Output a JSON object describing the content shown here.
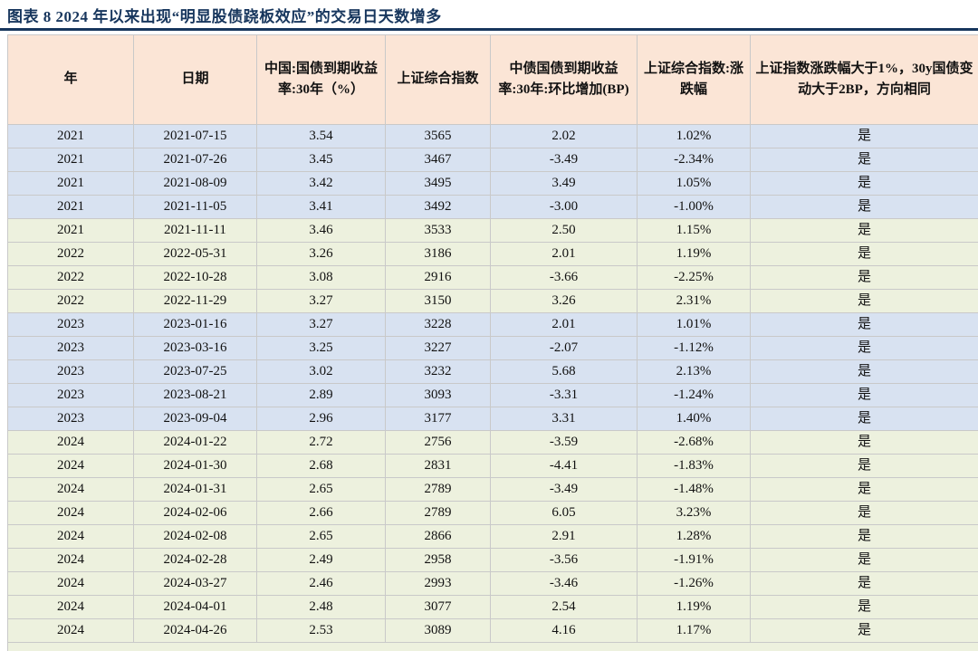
{
  "title": "图表 8  2024 年以来出现“明显股债跷板效应”的交易日天数增多",
  "colors": {
    "title": "#17365d",
    "rule": "#17365d",
    "header_bg": "#fbe5d6",
    "group_blue": "#d8e2f1",
    "group_green": "#edf1de",
    "text": "#111111"
  },
  "table": {
    "columns": [
      {
        "key": "year",
        "label": "年"
      },
      {
        "key": "date",
        "label": "日期"
      },
      {
        "key": "yield_30y",
        "label": "中国:国债到期收益率:30年（%）"
      },
      {
        "key": "sse_index",
        "label": "上证综合指数"
      },
      {
        "key": "yield_chg_bp",
        "label": "中债国债到期收益率:30年:环比增加(BP)"
      },
      {
        "key": "sse_chg_pct",
        "label": "上证综合指数:涨跌幅"
      },
      {
        "key": "flag",
        "label": "上证指数涨跌幅大于1%，30y国债变动大于2BP，方向相同"
      }
    ],
    "rows": [
      {
        "year": "2021",
        "date": "2021-07-15",
        "yield_30y": "3.54",
        "sse_index": "3565",
        "yield_chg_bp": "2.02",
        "sse_chg_pct": "1.02%",
        "flag": "是",
        "group": "blue"
      },
      {
        "year": "2021",
        "date": "2021-07-26",
        "yield_30y": "3.45",
        "sse_index": "3467",
        "yield_chg_bp": "-3.49",
        "sse_chg_pct": "-2.34%",
        "flag": "是",
        "group": "blue"
      },
      {
        "year": "2021",
        "date": "2021-08-09",
        "yield_30y": "3.42",
        "sse_index": "3495",
        "yield_chg_bp": "3.49",
        "sse_chg_pct": "1.05%",
        "flag": "是",
        "group": "blue"
      },
      {
        "year": "2021",
        "date": "2021-11-05",
        "yield_30y": "3.41",
        "sse_index": "3492",
        "yield_chg_bp": "-3.00",
        "sse_chg_pct": "-1.00%",
        "flag": "是",
        "group": "blue"
      },
      {
        "year": "2021",
        "date": "2021-11-11",
        "yield_30y": "3.46",
        "sse_index": "3533",
        "yield_chg_bp": "2.50",
        "sse_chg_pct": "1.15%",
        "flag": "是",
        "group": "green"
      },
      {
        "year": "2022",
        "date": "2022-05-31",
        "yield_30y": "3.26",
        "sse_index": "3186",
        "yield_chg_bp": "2.01",
        "sse_chg_pct": "1.19%",
        "flag": "是",
        "group": "green"
      },
      {
        "year": "2022",
        "date": "2022-10-28",
        "yield_30y": "3.08",
        "sse_index": "2916",
        "yield_chg_bp": "-3.66",
        "sse_chg_pct": "-2.25%",
        "flag": "是",
        "group": "green"
      },
      {
        "year": "2022",
        "date": "2022-11-29",
        "yield_30y": "3.27",
        "sse_index": "3150",
        "yield_chg_bp": "3.26",
        "sse_chg_pct": "2.31%",
        "flag": "是",
        "group": "green"
      },
      {
        "year": "2023",
        "date": "2023-01-16",
        "yield_30y": "3.27",
        "sse_index": "3228",
        "yield_chg_bp": "2.01",
        "sse_chg_pct": "1.01%",
        "flag": "是",
        "group": "blue"
      },
      {
        "year": "2023",
        "date": "2023-03-16",
        "yield_30y": "3.25",
        "sse_index": "3227",
        "yield_chg_bp": "-2.07",
        "sse_chg_pct": "-1.12%",
        "flag": "是",
        "group": "blue"
      },
      {
        "year": "2023",
        "date": "2023-07-25",
        "yield_30y": "3.02",
        "sse_index": "3232",
        "yield_chg_bp": "5.68",
        "sse_chg_pct": "2.13%",
        "flag": "是",
        "group": "blue"
      },
      {
        "year": "2023",
        "date": "2023-08-21",
        "yield_30y": "2.89",
        "sse_index": "3093",
        "yield_chg_bp": "-3.31",
        "sse_chg_pct": "-1.24%",
        "flag": "是",
        "group": "blue"
      },
      {
        "year": "2023",
        "date": "2023-09-04",
        "yield_30y": "2.96",
        "sse_index": "3177",
        "yield_chg_bp": "3.31",
        "sse_chg_pct": "1.40%",
        "flag": "是",
        "group": "blue"
      },
      {
        "year": "2024",
        "date": "2024-01-22",
        "yield_30y": "2.72",
        "sse_index": "2756",
        "yield_chg_bp": "-3.59",
        "sse_chg_pct": "-2.68%",
        "flag": "是",
        "group": "green"
      },
      {
        "year": "2024",
        "date": "2024-01-30",
        "yield_30y": "2.68",
        "sse_index": "2831",
        "yield_chg_bp": "-4.41",
        "sse_chg_pct": "-1.83%",
        "flag": "是",
        "group": "green"
      },
      {
        "year": "2024",
        "date": "2024-01-31",
        "yield_30y": "2.65",
        "sse_index": "2789",
        "yield_chg_bp": "-3.49",
        "sse_chg_pct": "-1.48%",
        "flag": "是",
        "group": "green"
      },
      {
        "year": "2024",
        "date": "2024-02-06",
        "yield_30y": "2.66",
        "sse_index": "2789",
        "yield_chg_bp": "6.05",
        "sse_chg_pct": "3.23%",
        "flag": "是",
        "group": "green"
      },
      {
        "year": "2024",
        "date": "2024-02-08",
        "yield_30y": "2.65",
        "sse_index": "2866",
        "yield_chg_bp": "2.91",
        "sse_chg_pct": "1.28%",
        "flag": "是",
        "group": "green"
      },
      {
        "year": "2024",
        "date": "2024-02-28",
        "yield_30y": "2.49",
        "sse_index": "2958",
        "yield_chg_bp": "-3.56",
        "sse_chg_pct": "-1.91%",
        "flag": "是",
        "group": "green"
      },
      {
        "year": "2024",
        "date": "2024-03-27",
        "yield_30y": "2.46",
        "sse_index": "2993",
        "yield_chg_bp": "-3.46",
        "sse_chg_pct": "-1.26%",
        "flag": "是",
        "group": "green"
      },
      {
        "year": "2024",
        "date": "2024-04-01",
        "yield_30y": "2.48",
        "sse_index": "3077",
        "yield_chg_bp": "2.54",
        "sse_chg_pct": "1.19%",
        "flag": "是",
        "group": "green"
      },
      {
        "year": "2024",
        "date": "2024-04-26",
        "yield_30y": "2.53",
        "sse_index": "3089",
        "yield_chg_bp": "4.16",
        "sse_chg_pct": "1.17%",
        "flag": "是",
        "group": "green"
      }
    ]
  },
  "chart_data": {
    "type": "table",
    "title": "图表 8  2024 年以来出现“明显股债跷板效应”的交易日天数增多",
    "note": "all rows duplicated in table.rows"
  }
}
